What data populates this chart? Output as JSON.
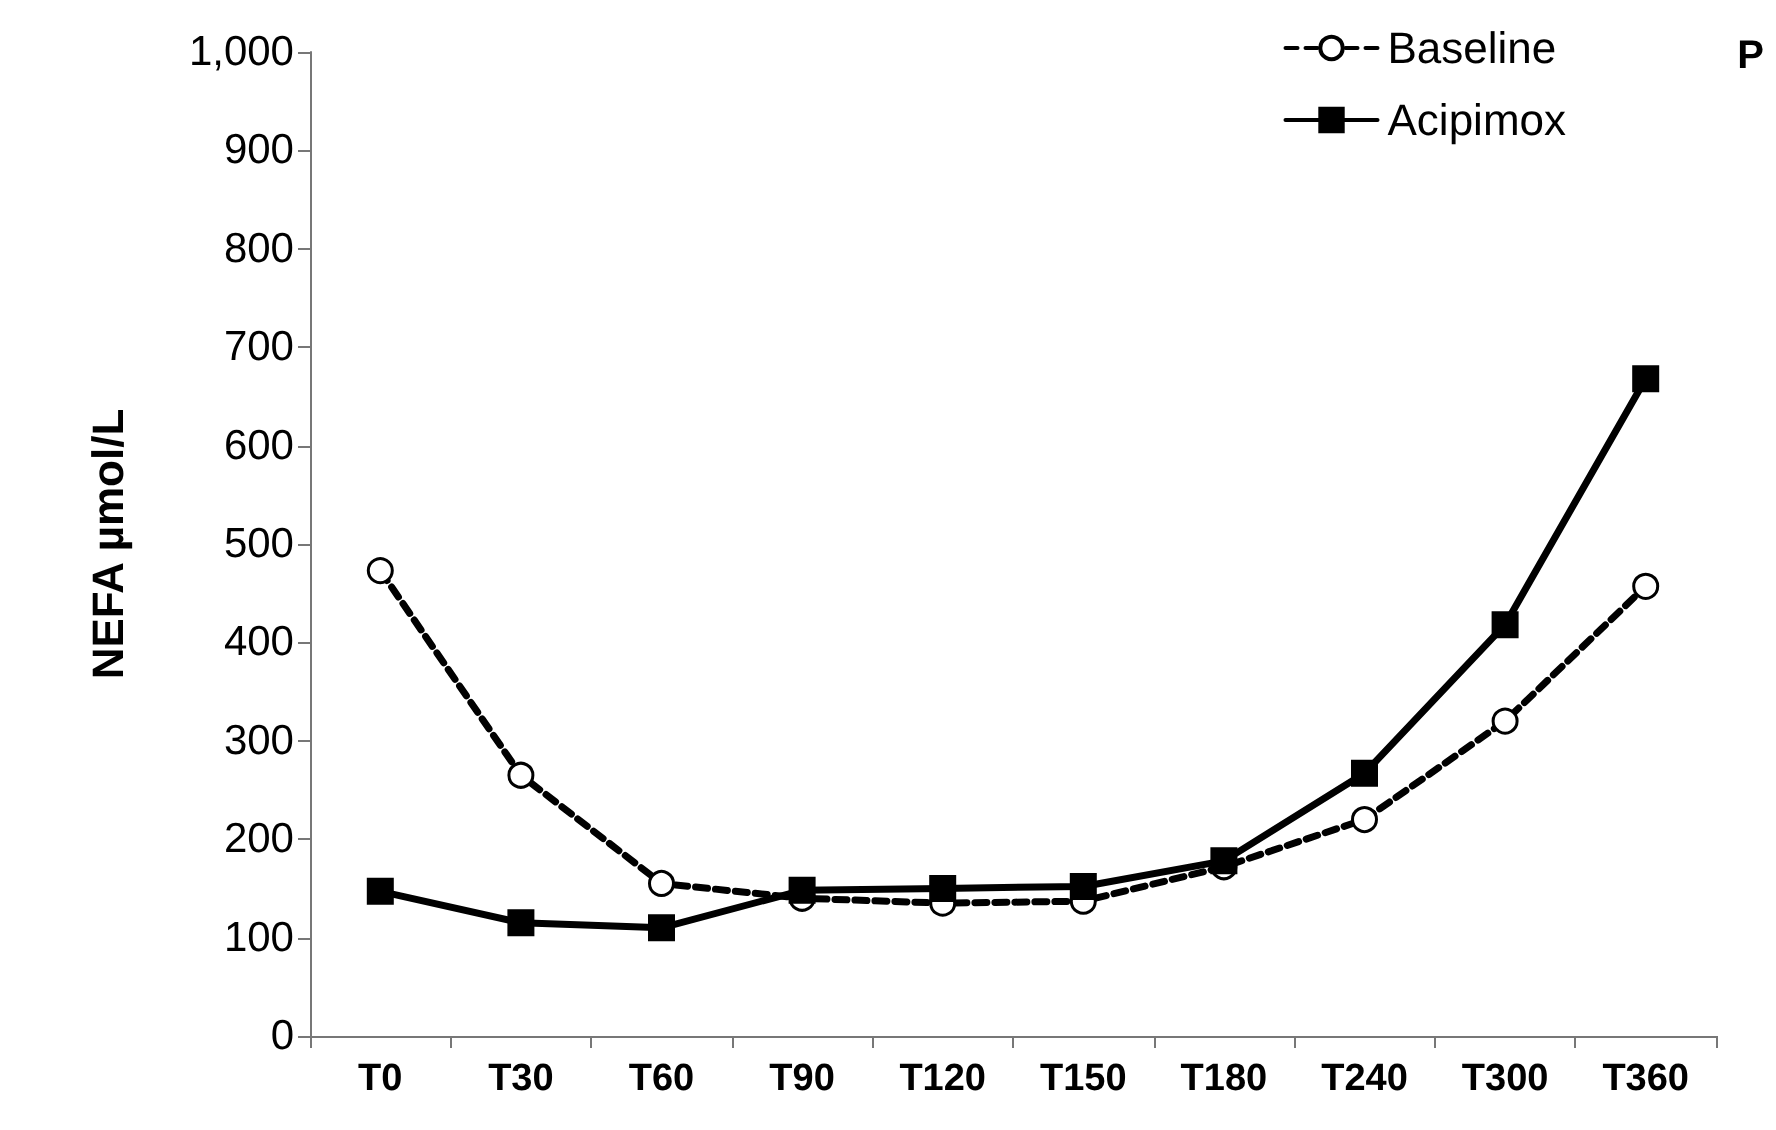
{
  "chart_data": {
    "type": "line",
    "ylabel": "NEFA µmol/L",
    "annotations": [
      "P"
    ],
    "categories": [
      "T0",
      "T30",
      "T60",
      "T90",
      "T120",
      "T150",
      "T180",
      "T240",
      "T300",
      "T360"
    ],
    "series": [
      {
        "name": "Baseline",
        "color": "#000000",
        "marker": "circle",
        "line_style": "dashed",
        "values": [
          473,
          265,
          155,
          140,
          135,
          137,
          172,
          220,
          320,
          457
        ]
      },
      {
        "name": "Acipimox",
        "color": "#000000",
        "marker": "square",
        "line_style": "solid",
        "values": [
          147,
          115,
          110,
          148,
          150,
          152,
          178,
          267,
          418,
          668
        ]
      }
    ],
    "ylim": [
      0,
      1000
    ],
    "yticks": [
      0,
      100,
      200,
      300,
      400,
      500,
      600,
      700,
      800,
      900,
      {
        "value": 1000,
        "label": "1,000"
      }
    ],
    "grid": false,
    "legend": "top right"
  }
}
